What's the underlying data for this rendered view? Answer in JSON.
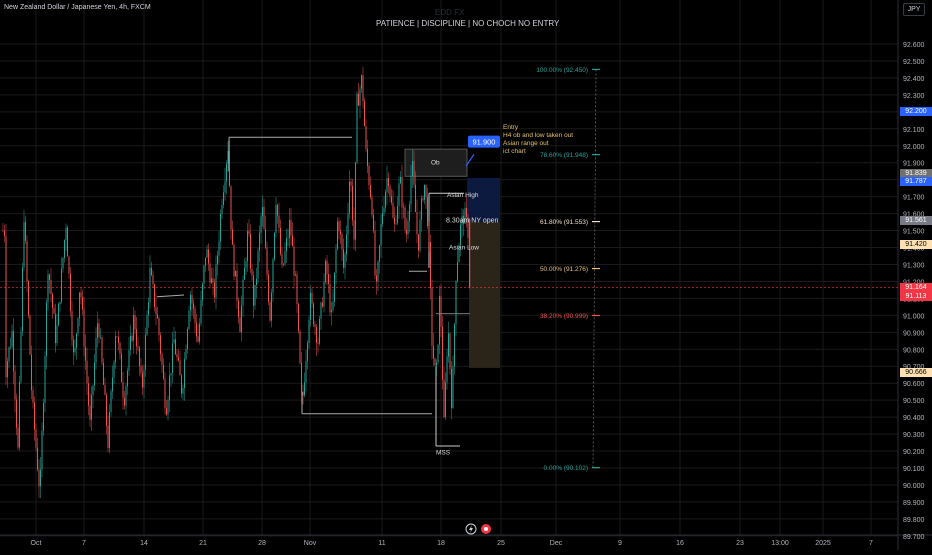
{
  "header": {
    "symbol_line": "New Zealand Dollar / Japanese Yen, 4h, FXCM",
    "watermark": "EDD FX",
    "currency": "JPY"
  },
  "annotation": {
    "title": "PATIENCE | DISCIPLINE | NO CHOCH NO ENTRY"
  },
  "chart_data": {
    "type": "candlestick",
    "symbol": "NZDJPY",
    "timeframe": "4h",
    "ylim": [
      89.63,
      92.66
    ],
    "y_ticks": [
      92.6,
      92.5,
      92.4,
      92.3,
      92.2,
      92.1,
      92.0,
      91.9,
      91.8,
      91.7,
      91.6,
      91.5,
      91.4,
      91.3,
      91.2,
      91.1,
      91.0,
      90.9,
      90.8,
      90.7,
      90.6,
      90.5,
      90.4,
      90.3,
      90.2,
      90.1,
      90.0,
      89.9,
      89.8,
      89.7
    ],
    "x_ticks": [
      {
        "label": "Oct",
        "x": 36
      },
      {
        "label": "7",
        "x": 84
      },
      {
        "label": "14",
        "x": 144
      },
      {
        "label": "21",
        "x": 203
      },
      {
        "label": "28",
        "x": 262
      },
      {
        "label": "Nov",
        "x": 310
      },
      {
        "label": "11",
        "x": 382
      },
      {
        "label": "18",
        "x": 441
      },
      {
        "label": "25",
        "x": 501
      },
      {
        "label": "Dec",
        "x": 556
      },
      {
        "label": "9",
        "x": 620
      },
      {
        "label": "16",
        "x": 680
      },
      {
        "label": "23",
        "x": 740
      },
      {
        "label": "13:00",
        "x": 780
      },
      {
        "label": "2025",
        "x": 823
      },
      {
        "label": "7",
        "x": 871
      }
    ],
    "waypoints": [
      [
        5,
        90.65
      ],
      [
        12,
        90.9
      ],
      [
        18,
        90.2
      ],
      [
        24,
        91.6
      ],
      [
        32,
        90.5
      ],
      [
        40,
        89.95
      ],
      [
        48,
        91.3
      ],
      [
        56,
        90.85
      ],
      [
        66,
        91.55
      ],
      [
        74,
        90.7
      ],
      [
        80,
        91.2
      ],
      [
        90,
        90.35
      ],
      [
        98,
        91.0
      ],
      [
        108,
        90.25
      ],
      [
        116,
        90.95
      ],
      [
        124,
        90.5
      ],
      [
        134,
        91.0
      ],
      [
        142,
        90.55
      ],
      [
        150,
        91.25
      ],
      [
        158,
        90.95
      ],
      [
        166,
        90.45
      ],
      [
        174,
        90.85
      ],
      [
        182,
        90.55
      ],
      [
        190,
        91.15
      ],
      [
        198,
        90.85
      ],
      [
        206,
        91.4
      ],
      [
        214,
        91.1
      ],
      [
        222,
        91.7
      ],
      [
        228,
        92.0
      ],
      [
        232,
        91.4
      ],
      [
        240,
        90.95
      ],
      [
        248,
        91.5
      ],
      [
        254,
        91.05
      ],
      [
        262,
        91.65
      ],
      [
        270,
        91.0
      ],
      [
        276,
        91.7
      ],
      [
        282,
        91.25
      ],
      [
        290,
        91.55
      ],
      [
        296,
        91.15
      ],
      [
        302,
        90.45
      ],
      [
        310,
        91.1
      ],
      [
        318,
        90.85
      ],
      [
        326,
        91.3
      ],
      [
        332,
        90.95
      ],
      [
        338,
        91.6
      ],
      [
        344,
        91.25
      ],
      [
        350,
        91.85
      ],
      [
        354,
        91.45
      ],
      [
        357,
        92.25
      ],
      [
        362,
        92.4
      ],
      [
        366,
        91.95
      ],
      [
        372,
        91.65
      ],
      [
        376,
        91.1
      ],
      [
        382,
        91.6
      ],
      [
        388,
        91.85
      ],
      [
        394,
        91.5
      ],
      [
        400,
        91.8
      ],
      [
        406,
        91.45
      ],
      [
        412,
        91.9
      ],
      [
        418,
        91.4
      ],
      [
        424,
        91.8
      ],
      [
        428,
        91.55
      ],
      [
        432,
        90.85
      ],
      [
        436,
        90.6
      ],
      [
        440,
        91.15
      ],
      [
        444,
        90.35
      ],
      [
        448,
        90.95
      ],
      [
        452,
        90.45
      ],
      [
        456,
        91.25
      ],
      [
        460,
        91.5
      ],
      [
        464,
        91.6
      ],
      [
        468,
        91.5
      ]
    ],
    "levels": [
      {
        "label": "100.00% (92.450)",
        "price": 92.45,
        "color": "#26a69a"
      },
      {
        "label": "78.60% (91.948)",
        "price": 91.948,
        "color": "#26a69a"
      },
      {
        "label": "61.80% (91.553)",
        "price": 91.553,
        "color": "#f0e0c8"
      },
      {
        "label": "50.00% (91.276)",
        "price": 91.276,
        "color": "#f0c080"
      },
      {
        "label": "38.20% (90.999)",
        "price": 90.999,
        "color": "#ef5350"
      },
      {
        "label": "0.00% (90.102)",
        "price": 90.102,
        "color": "#26a69a"
      }
    ],
    "zone_labels": {
      "ob": "Ob",
      "asian_high": "Asian High",
      "ny_open": "8.30am NY open",
      "asian_low": "Asian Low",
      "mss": "MSS"
    },
    "entry_price": "91.900",
    "notes": [
      "Entry",
      "H4  ob and low taken out",
      "Asian range out",
      "ict chart"
    ],
    "price_tags": [
      {
        "text": "92.200",
        "price": 92.2,
        "bg": "#2962ff",
        "fg": "#fff"
      },
      {
        "text": "91.839",
        "price": 91.839,
        "bg": "#707070",
        "fg": "#fff"
      },
      {
        "text": "91.787",
        "price": 91.787,
        "bg": "#2962ff",
        "fg": "#fff"
      },
      {
        "text": "91.561",
        "price": 91.561,
        "bg": "#787b86",
        "fg": "#fff"
      },
      {
        "text": "91.420",
        "price": 91.42,
        "bg": "#ffe0b2",
        "fg": "#000"
      },
      {
        "text": "91.164",
        "price": 91.164,
        "bg": "#f23645",
        "fg": "#fff"
      },
      {
        "text": "91.113",
        "price": 91.113,
        "bg": "#f23645",
        "fg": "#fff"
      },
      {
        "text": "90.666",
        "price": 90.666,
        "bg": "#ffe0b2",
        "fg": "#000"
      }
    ],
    "current_price": 91.164
  },
  "colors": {
    "up": "#26a69a",
    "down": "#ef5350",
    "bg": "#000000",
    "grid": "#1a1a1a",
    "axis_text": "#b2b5be"
  }
}
